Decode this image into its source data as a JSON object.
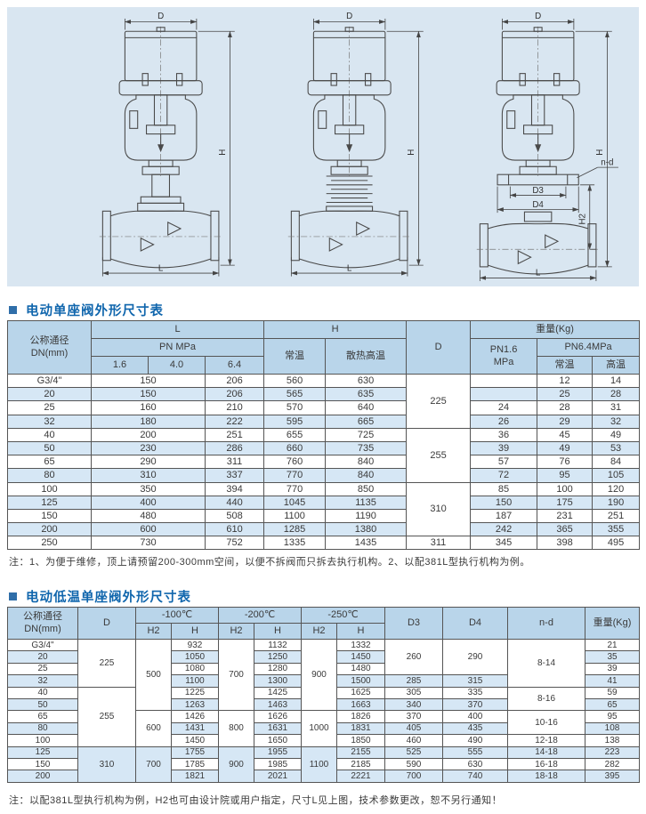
{
  "colors": {
    "accent_blue": "#1066ad",
    "panel_bg": "#d9e6f1",
    "table_header_bg": "#b9d5ea",
    "row_stripe_bg": "#d6e7f5",
    "border": "#555555"
  },
  "diagram_labels": {
    "D": "D",
    "H": "H",
    "L": "L",
    "H2": "H2",
    "D3": "D3",
    "D4": "D4",
    "nd": "n-d"
  },
  "section1": {
    "title": "电动单座阀外形尺寸表",
    "note": "注：1、为便于维修，顶上请预留200-300mm空间，以便不拆阀而只拆去执行机构。2、以配381L型执行机构为例。",
    "table": {
      "cols": [
        94,
        64,
        64,
        66,
        69,
        91,
        72,
        75,
        62,
        53
      ],
      "header": [
        [
          {
            "t": "公称通径\nDN(mm)",
            "rs": 3
          },
          {
            "t": "L",
            "cs": 3
          },
          {
            "t": "H",
            "cs": 2
          },
          {
            "t": "D",
            "rs": 3
          },
          {
            "t": "重量(Kg)",
            "cs": 3
          }
        ],
        [
          {
            "t": "PN MPa",
            "cs": 3
          },
          {
            "t": "常温",
            "rs": 2
          },
          {
            "t": "散热高温",
            "rs": 2
          },
          {
            "t": "PN1.6\nMPa",
            "rs": 2
          },
          {
            "t": "PN6.4MPa",
            "cs": 2
          }
        ],
        [
          {
            "t": "1.6"
          },
          {
            "t": "4.0"
          },
          {
            "t": "6.4"
          },
          {
            "t": "常温"
          },
          {
            "t": "高温"
          }
        ]
      ],
      "rows": [
        [
          {
            "t": "G3/4\""
          },
          {
            "t": "150",
            "cs": 2
          },
          {
            "t": "206"
          },
          {
            "t": "560"
          },
          {
            "t": "630"
          },
          {
            "t": "225",
            "rs": 4
          },
          {
            "t": ""
          },
          {
            "t": "12"
          },
          {
            "t": "14"
          }
        ],
        [
          {
            "t": "20"
          },
          {
            "t": "150",
            "cs": 2
          },
          {
            "t": "206"
          },
          {
            "t": "565"
          },
          {
            "t": "635"
          },
          {
            "t": ""
          },
          {
            "t": "25"
          },
          {
            "t": "28"
          }
        ],
        [
          {
            "t": "25"
          },
          {
            "t": "160",
            "cs": 2
          },
          {
            "t": "210"
          },
          {
            "t": "570"
          },
          {
            "t": "640"
          },
          {
            "t": "24"
          },
          {
            "t": "28"
          },
          {
            "t": "31"
          }
        ],
        [
          {
            "t": "32"
          },
          {
            "t": "180",
            "cs": 2
          },
          {
            "t": "222"
          },
          {
            "t": "595"
          },
          {
            "t": "665"
          },
          {
            "t": "26"
          },
          {
            "t": "29"
          },
          {
            "t": "32"
          }
        ],
        [
          {
            "t": "40"
          },
          {
            "t": "200",
            "cs": 2
          },
          {
            "t": "251"
          },
          {
            "t": "655"
          },
          {
            "t": "725"
          },
          {
            "t": "255",
            "rs": 4
          },
          {
            "t": "36"
          },
          {
            "t": "45"
          },
          {
            "t": "49"
          }
        ],
        [
          {
            "t": "50"
          },
          {
            "t": "230",
            "cs": 2
          },
          {
            "t": "286"
          },
          {
            "t": "660"
          },
          {
            "t": "735"
          },
          {
            "t": "39"
          },
          {
            "t": "49"
          },
          {
            "t": "53"
          }
        ],
        [
          {
            "t": "65"
          },
          {
            "t": "290",
            "cs": 2
          },
          {
            "t": "311"
          },
          {
            "t": "760"
          },
          {
            "t": "840"
          },
          {
            "t": "57"
          },
          {
            "t": "76"
          },
          {
            "t": "84"
          }
        ],
        [
          {
            "t": "80"
          },
          {
            "t": "310",
            "cs": 2
          },
          {
            "t": "337"
          },
          {
            "t": "770"
          },
          {
            "t": "840"
          },
          {
            "t": "72"
          },
          {
            "t": "95"
          },
          {
            "t": "105"
          }
        ],
        [
          {
            "t": "100"
          },
          {
            "t": "350",
            "cs": 2
          },
          {
            "t": "394"
          },
          {
            "t": "770"
          },
          {
            "t": "850"
          },
          {
            "t": "310",
            "rs": 4
          },
          {
            "t": "85"
          },
          {
            "t": "100"
          },
          {
            "t": "120"
          }
        ],
        [
          {
            "t": "125"
          },
          {
            "t": "400",
            "cs": 2
          },
          {
            "t": "440"
          },
          {
            "t": "1045"
          },
          {
            "t": "1135"
          },
          {
            "t": "150"
          },
          {
            "t": "175"
          },
          {
            "t": "190"
          }
        ],
        [
          {
            "t": "150"
          },
          {
            "t": "480",
            "cs": 2
          },
          {
            "t": "508"
          },
          {
            "t": "1100"
          },
          {
            "t": "1190"
          },
          {
            "t": "187"
          },
          {
            "t": "231"
          },
          {
            "t": "251"
          }
        ],
        [
          {
            "t": "200"
          },
          {
            "t": "600",
            "cs": 2
          },
          {
            "t": "610"
          },
          {
            "t": "1285"
          },
          {
            "t": "1380"
          },
          {
            "t": "242"
          },
          {
            "t": "365"
          },
          {
            "t": "355"
          }
        ],
        [
          {
            "t": "250"
          },
          {
            "t": "730",
            "cs": 2
          },
          {
            "t": "752"
          },
          {
            "t": "1335"
          },
          {
            "t": "1435"
          },
          {
            "t": "311"
          },
          {
            "t": "345"
          },
          {
            "t": "398"
          },
          {
            "t": "495"
          }
        ]
      ]
    }
  },
  "section2": {
    "title": "电动低温单座阀外形尺寸表",
    "note": "注：以配381L型执行机构为例，H2也可由设计院或用户指定，尺寸L见上图，技术参数更改，恕不另行通知！",
    "table": {
      "cols": [
        79,
        65,
        40,
        53,
        40,
        53,
        40,
        54,
        65,
        73,
        87,
        61
      ],
      "header": [
        [
          {
            "t": "公称通径\nDN(mm)",
            "rs": 2
          },
          {
            "t": "D",
            "rs": 2
          },
          {
            "t": "-100℃",
            "cs": 2
          },
          {
            "t": "-200℃",
            "cs": 2
          },
          {
            "t": "-250℃",
            "cs": 2
          },
          {
            "t": "D3",
            "rs": 2
          },
          {
            "t": "D4",
            "rs": 2
          },
          {
            "t": "n-d",
            "rs": 2
          },
          {
            "t": "重量(Kg)",
            "rs": 2
          }
        ],
        [
          {
            "t": "H2"
          },
          {
            "t": "H"
          },
          {
            "t": "H2"
          },
          {
            "t": "H"
          },
          {
            "t": "H2"
          },
          {
            "t": "H"
          }
        ]
      ],
      "rows": [
        [
          {
            "t": "G3/4\""
          },
          {
            "t": "225",
            "rs": 4
          },
          {
            "t": "500",
            "rs": 6
          },
          {
            "t": "932"
          },
          {
            "t": "700",
            "rs": 6
          },
          {
            "t": "1132"
          },
          {
            "t": "900",
            "rs": 6
          },
          {
            "t": "1332"
          },
          {
            "t": "260",
            "rs": 3
          },
          {
            "t": "290",
            "rs": 3
          },
          {
            "t": "8-14",
            "rs": 4
          },
          {
            "t": "21"
          }
        ],
        [
          {
            "t": "20"
          },
          {
            "t": "1050"
          },
          {
            "t": "1250"
          },
          {
            "t": "1450"
          },
          {
            "t": "35"
          }
        ],
        [
          {
            "t": "25"
          },
          {
            "t": "1080"
          },
          {
            "t": "1280"
          },
          {
            "t": "1480"
          },
          {
            "t": "39"
          }
        ],
        [
          {
            "t": "32"
          },
          {
            "t": "1100"
          },
          {
            "t": "1300"
          },
          {
            "t": "1500"
          },
          {
            "t": "285"
          },
          {
            "t": "315"
          },
          {
            "t": "41"
          }
        ],
        [
          {
            "t": "40"
          },
          {
            "t": "255",
            "rs": 5
          },
          {
            "t": "1225"
          },
          {
            "t": "1425"
          },
          {
            "t": "1625"
          },
          {
            "t": "305"
          },
          {
            "t": "335"
          },
          {
            "t": "8-16",
            "rs": 2
          },
          {
            "t": "59"
          }
        ],
        [
          {
            "t": "50"
          },
          {
            "t": "1263"
          },
          {
            "t": "1463"
          },
          {
            "t": "1663"
          },
          {
            "t": "340"
          },
          {
            "t": "370"
          },
          {
            "t": "65"
          }
        ],
        [
          {
            "t": "65"
          },
          {
            "t": "600",
            "rs": 3
          },
          {
            "t": "1426"
          },
          {
            "t": "800",
            "rs": 3
          },
          {
            "t": "1626"
          },
          {
            "t": "1000",
            "rs": 3
          },
          {
            "t": "1826"
          },
          {
            "t": "370"
          },
          {
            "t": "400"
          },
          {
            "t": "10-16",
            "rs": 2
          },
          {
            "t": "95"
          }
        ],
        [
          {
            "t": "80"
          },
          {
            "t": "1431"
          },
          {
            "t": "1631"
          },
          {
            "t": "1831"
          },
          {
            "t": "405"
          },
          {
            "t": "435"
          },
          {
            "t": "108"
          }
        ],
        [
          {
            "t": "100"
          },
          {
            "t": "1450"
          },
          {
            "t": "1650"
          },
          {
            "t": "1850"
          },
          {
            "t": "460"
          },
          {
            "t": "490"
          },
          {
            "t": "12-18"
          },
          {
            "t": "138"
          }
        ],
        [
          {
            "t": "125"
          },
          {
            "t": "310",
            "rs": 3
          },
          {
            "t": "700",
            "rs": 3
          },
          {
            "t": "1755"
          },
          {
            "t": "900",
            "rs": 3
          },
          {
            "t": "1955"
          },
          {
            "t": "1100",
            "rs": 3
          },
          {
            "t": "2155"
          },
          {
            "t": "525"
          },
          {
            "t": "555"
          },
          {
            "t": "14-18"
          },
          {
            "t": "223"
          }
        ],
        [
          {
            "t": "150"
          },
          {
            "t": "1785"
          },
          {
            "t": "1985"
          },
          {
            "t": "2185"
          },
          {
            "t": "590"
          },
          {
            "t": "630"
          },
          {
            "t": "16-18"
          },
          {
            "t": "282"
          }
        ],
        [
          {
            "t": "200"
          },
          {
            "t": "1821"
          },
          {
            "t": "2021"
          },
          {
            "t": "2221"
          },
          {
            "t": "700"
          },
          {
            "t": "740"
          },
          {
            "t": "18-18"
          },
          {
            "t": "395"
          }
        ]
      ]
    }
  }
}
